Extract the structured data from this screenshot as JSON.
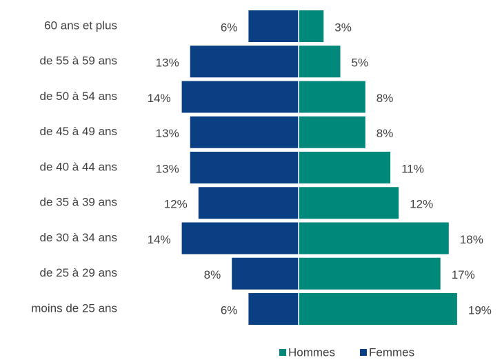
{
  "chart_data": {
    "type": "pyramid",
    "categories": [
      "60 ans et plus",
      "de 55 à 59 ans",
      "de 50 à 54 ans",
      "de 45 à 49 ans",
      "de 40 à 44 ans",
      "de 35 à 39 ans",
      "de 30 à 34 ans",
      "de 25 à 29 ans",
      "moins de 25 ans"
    ],
    "series": [
      {
        "name": "Hommes",
        "color": "#00897b",
        "values": [
          3,
          5,
          8,
          8,
          11,
          12,
          18,
          17,
          19
        ]
      },
      {
        "name": "Femmes",
        "color": "#0b3f84",
        "values": [
          6,
          13,
          14,
          13,
          13,
          12,
          14,
          8,
          6
        ]
      }
    ],
    "value_labels": [
      [
        "3%",
        "5%",
        "8%",
        "8%",
        "11%",
        "12%",
        "18%",
        "17%",
        "19%"
      ],
      [
        "6%",
        "13%",
        "14%",
        "13%",
        "13%",
        "12%",
        "14%",
        "8%",
        "6%"
      ]
    ],
    "legend": "bottom"
  }
}
